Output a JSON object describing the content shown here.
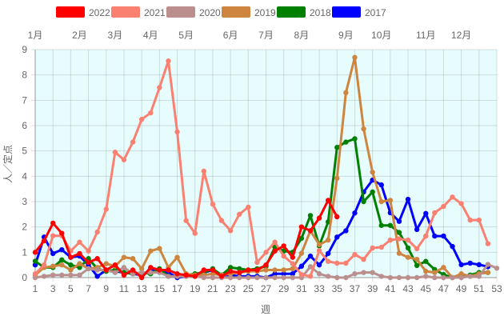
{
  "chart_data": {
    "type": "line",
    "title": "",
    "xlabel": "週",
    "ylabel": "人／定点",
    "xlim": [
      1,
      53
    ],
    "ylim": [
      0,
      9
    ],
    "x_ticks": [
      1,
      3,
      5,
      7,
      9,
      11,
      13,
      15,
      17,
      19,
      21,
      23,
      25,
      27,
      29,
      31,
      33,
      35,
      37,
      39,
      41,
      43,
      45,
      47,
      49,
      51,
      53
    ],
    "y_ticks": [
      0,
      1,
      2,
      3,
      4,
      5,
      6,
      7,
      8,
      9
    ],
    "grid": true,
    "legend_position": "top",
    "plot_background": "#e6fcfd",
    "month_labels": [
      {
        "label": "1月",
        "week": 1
      },
      {
        "label": "2月",
        "week": 6
      },
      {
        "label": "3月",
        "week": 10
      },
      {
        "label": "4月",
        "week": 14
      },
      {
        "label": "5月",
        "week": 18
      },
      {
        "label": "6月",
        "week": 23
      },
      {
        "label": "7月",
        "week": 27
      },
      {
        "label": "8月",
        "week": 31
      },
      {
        "label": "9月",
        "week": 36
      },
      {
        "label": "10月",
        "week": 40
      },
      {
        "label": "11月",
        "week": 45
      },
      {
        "label": "12月",
        "week": 49
      }
    ],
    "series": [
      {
        "name": "2022",
        "color": "#ff0000",
        "values": [
          1.0,
          1.45,
          2.15,
          1.75,
          0.8,
          0.95,
          0.6,
          0.75,
          0.3,
          0.5,
          0.1,
          0.3,
          0.0,
          0.4,
          0.3,
          0.3,
          0.15,
          0.1,
          0.05,
          0.3,
          0.3,
          0.05,
          0.25,
          0.2,
          0.3,
          0.3,
          0.5,
          1.05,
          1.25,
          0.8,
          2.0,
          1.85,
          2.35,
          3.05,
          2.4
        ]
      },
      {
        "name": "2021",
        "color": "#fa8072",
        "values": [
          0.15,
          0.5,
          1.65,
          1.65,
          1.05,
          1.4,
          1.05,
          1.8,
          2.7,
          4.95,
          4.65,
          5.35,
          6.25,
          6.5,
          7.5,
          8.55,
          5.75,
          2.25,
          1.75,
          4.2,
          2.9,
          2.25,
          1.85,
          2.5,
          2.78,
          0.6,
          1.0,
          1.4,
          0.85,
          0.55,
          0.12,
          0.05,
          1.07,
          0.64,
          0.57,
          0.57,
          0.91,
          0.72,
          1.17,
          1.2,
          1.48,
          1.53,
          1.48,
          1.14,
          1.64,
          2.56,
          2.81,
          3.18,
          2.92,
          2.27,
          2.27,
          1.34
        ]
      },
      {
        "name": "2020",
        "color": "#bc8f8f",
        "values": [
          0.0,
          0.05,
          0.1,
          0.1,
          0.1,
          0.1,
          0.35,
          0.3,
          0.3,
          0.2,
          0.4,
          0.15,
          0.2,
          0.2,
          0.2,
          0.05,
          0.05,
          0.05,
          0.05,
          0.0,
          0.0,
          0.0,
          0.0,
          0.0,
          0.0,
          0.0,
          0.0,
          0.0,
          0.0,
          0.0,
          0.0,
          0.43,
          0.15,
          0.05,
          0.0,
          0.0,
          0.15,
          0.2,
          0.2,
          0.05,
          0.0,
          0.0,
          0.0,
          0.0,
          0.05,
          0.0,
          0.0,
          0.0,
          0.0,
          0.05,
          0.05,
          0.52,
          0.37
        ]
      },
      {
        "name": "2019",
        "color": "#cd853f",
        "values": [
          0.1,
          0.4,
          0.45,
          0.5,
          0.3,
          0.55,
          0.35,
          0.4,
          0.55,
          0.45,
          0.8,
          0.75,
          0.35,
          1.05,
          1.15,
          0.4,
          0.8,
          0.15,
          0.1,
          0.1,
          0.15,
          0.1,
          0.15,
          0.2,
          0.25,
          0.25,
          0.3,
          0.3,
          0.3,
          0.35,
          0.96,
          1.85,
          1.3,
          1.48,
          3.92,
          7.3,
          8.69,
          5.87,
          4.16,
          3.0,
          3.05,
          0.96,
          0.8,
          0.72,
          0.25,
          0.2,
          0.4,
          0.0,
          0.15,
          0.05,
          0.15,
          0.2
        ]
      },
      {
        "name": "2018",
        "color": "#008000",
        "values": [
          0.65,
          0.4,
          0.4,
          0.7,
          0.5,
          0.4,
          0.75,
          0.35,
          0.25,
          0.3,
          0.2,
          0.15,
          0.2,
          0.15,
          0.35,
          0.05,
          0.05,
          0.1,
          0.15,
          0.2,
          0.35,
          0.1,
          0.4,
          0.35,
          0.3,
          0.35,
          0.45,
          1.2,
          1.05,
          1.0,
          1.55,
          2.45,
          1.25,
          2.2,
          5.14,
          5.35,
          5.48,
          3.0,
          3.38,
          2.06,
          2.06,
          1.78,
          1.17,
          0.48,
          0.64,
          0.32,
          0.12,
          0.0,
          0.05,
          0.1,
          0.2,
          0.2
        ]
      },
      {
        "name": "2017",
        "color": "#0000ff",
        "values": [
          0.5,
          1.6,
          0.95,
          1.1,
          0.8,
          0.85,
          0.5,
          0.05,
          0.3,
          0.25,
          0.2,
          0.15,
          0.1,
          0.3,
          0.25,
          0.2,
          0.0,
          0.05,
          0.1,
          0.2,
          0.3,
          0.1,
          0.1,
          0.05,
          0.05,
          0.05,
          0.0,
          0.15,
          0.15,
          0.15,
          0.45,
          0.85,
          0.5,
          0.95,
          1.6,
          1.85,
          2.55,
          3.38,
          3.85,
          3.66,
          2.56,
          2.22,
          3.09,
          1.9,
          2.53,
          1.64,
          1.64,
          1.23,
          0.51,
          0.57,
          0.51,
          0.43
        ]
      }
    ]
  }
}
